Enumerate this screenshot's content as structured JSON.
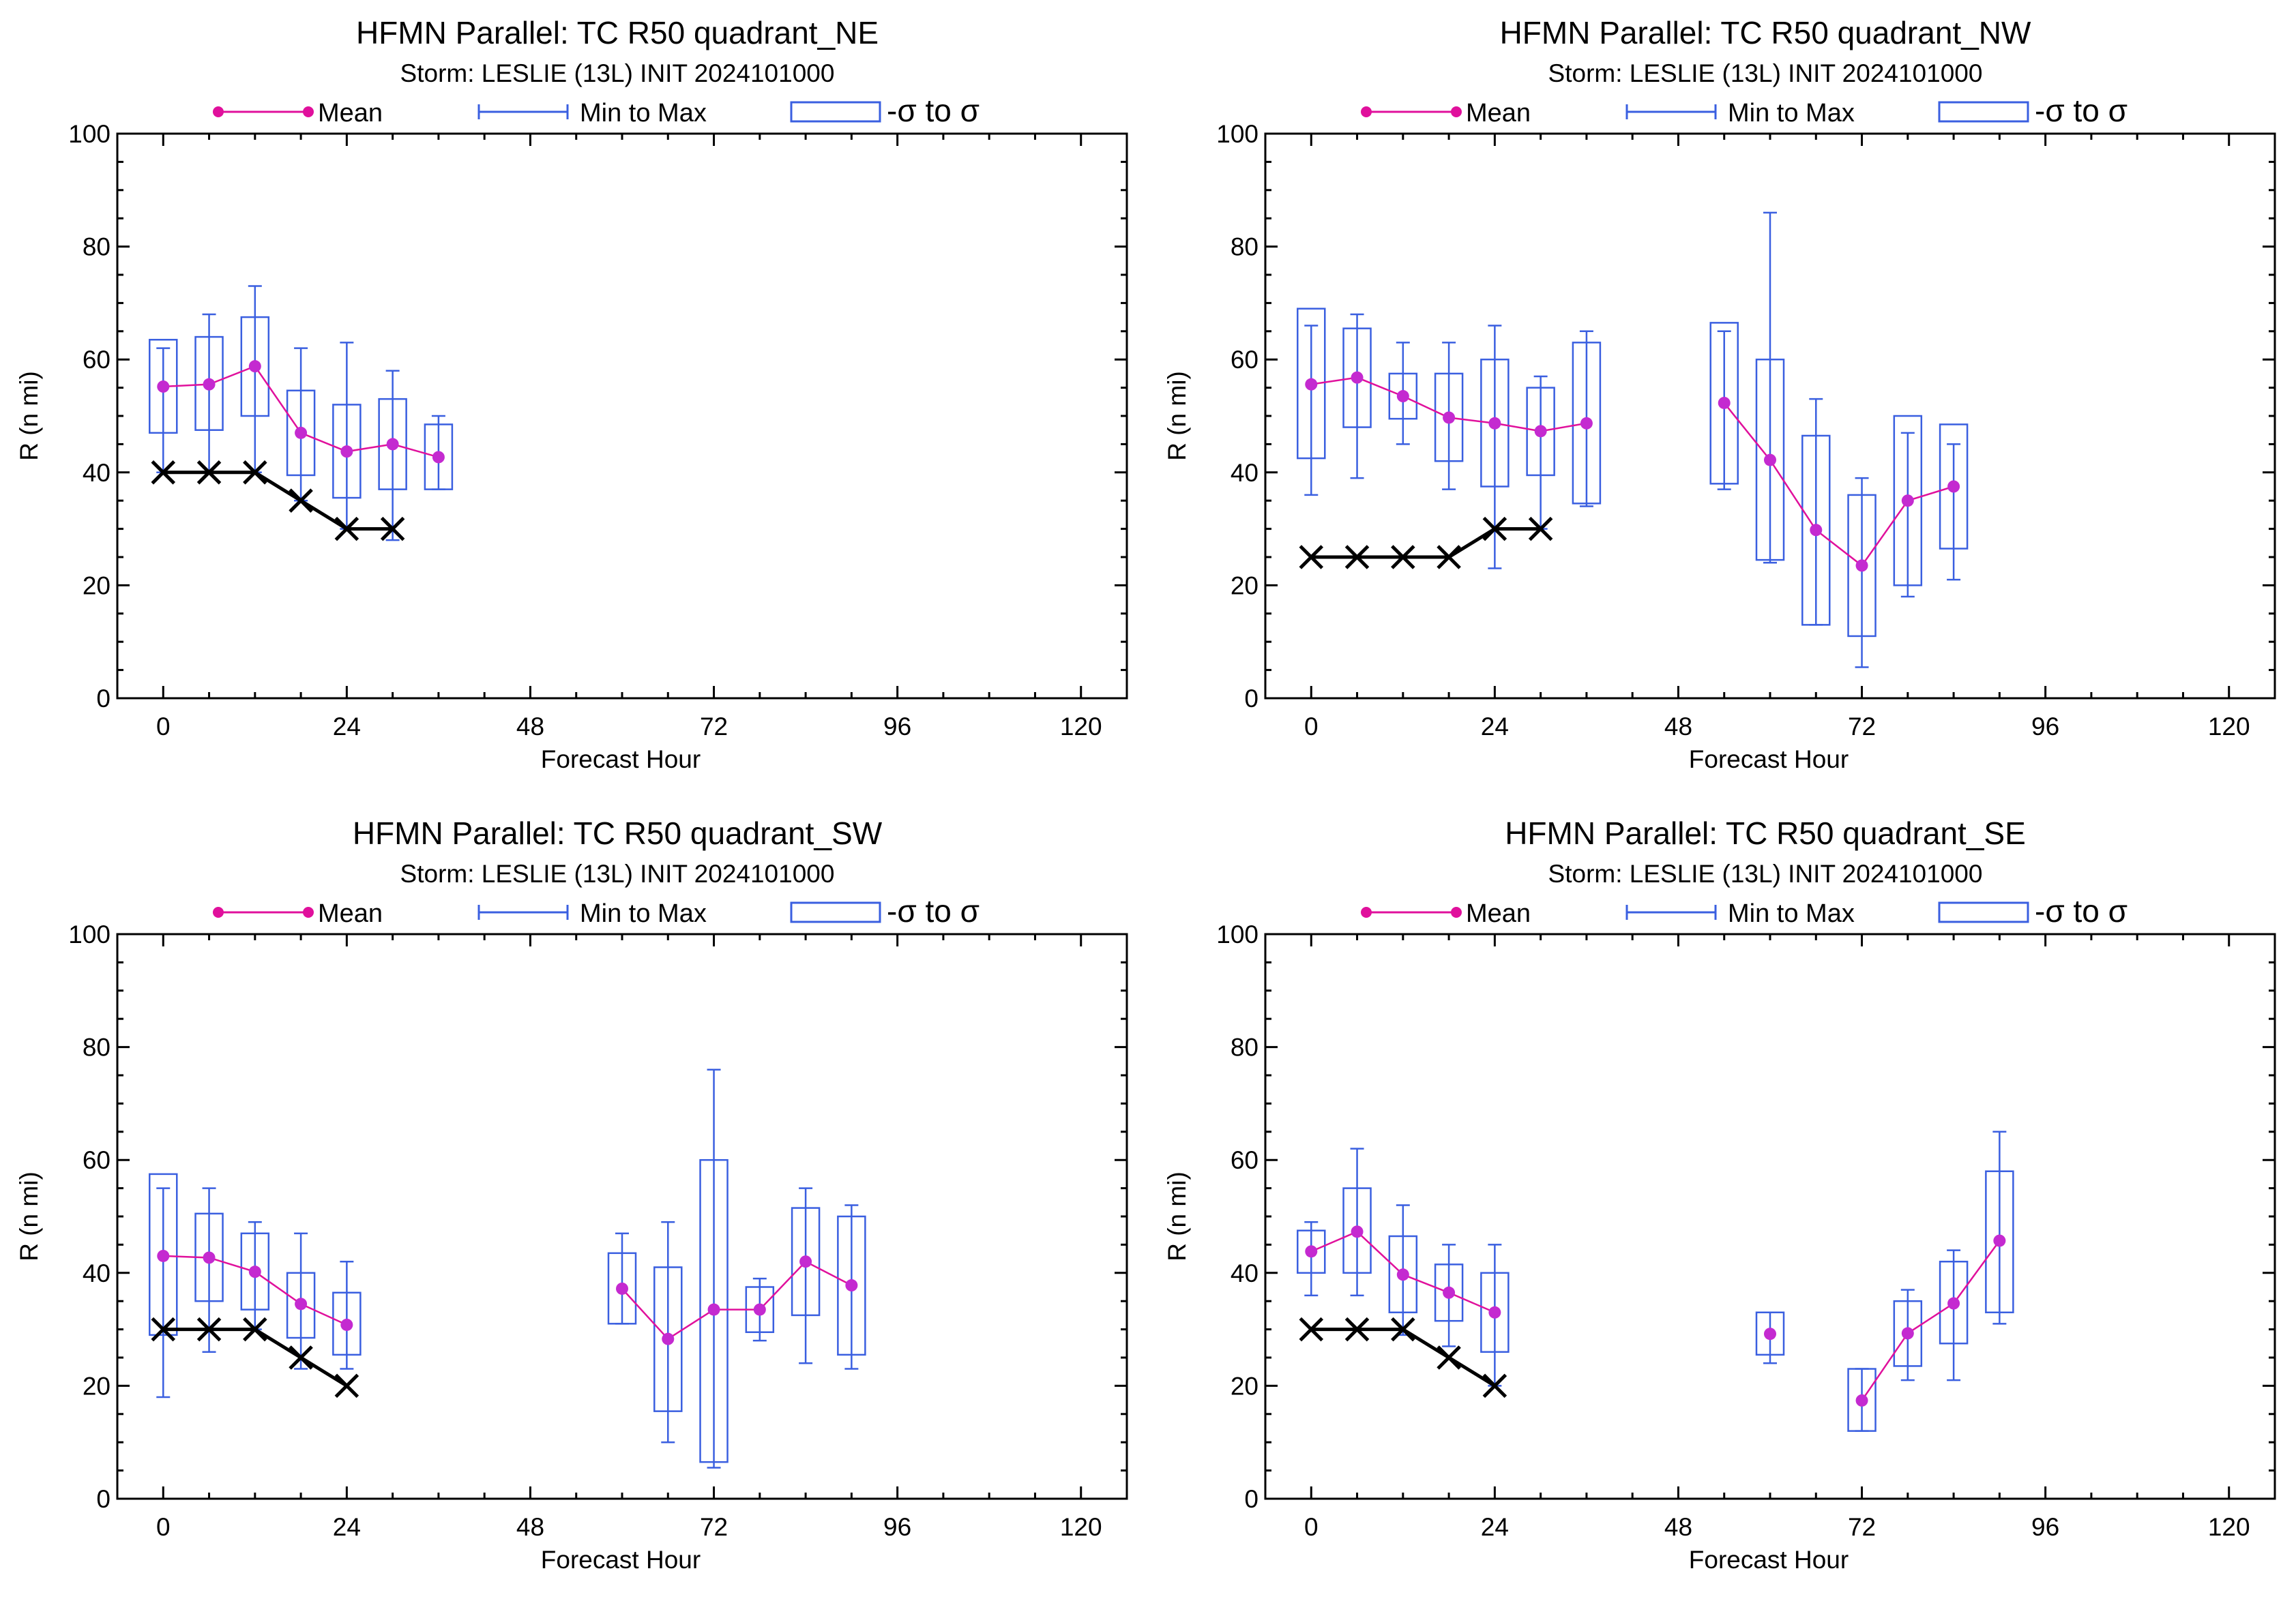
{
  "colors": {
    "mean": "#e0109c",
    "mean_marker": "#c42ad0",
    "range": "#3a5fe0",
    "observed": "#000000"
  },
  "legend": {
    "mean": "Mean",
    "range": "Min to Max",
    "sigma": "-σ to σ"
  },
  "chart_data": [
    {
      "type": "box",
      "title": "HFMN Parallel: TC  R50 quadrant_NE",
      "subtitle": "Storm: LESLIE (13L) INIT 2024101000",
      "xlabel": "Forecast Hour",
      "ylabel": "R (n mi)",
      "xlim": [
        -6,
        126
      ],
      "ylim": [
        0,
        100
      ],
      "xticks": [
        0,
        24,
        48,
        72,
        96,
        120
      ],
      "yticks": [
        0,
        20,
        40,
        60,
        80,
        100
      ],
      "series": [
        {
          "x": 0,
          "min": 40,
          "max": 62,
          "sigma_low": 47,
          "sigma_high": 63.5,
          "mean": 55.2
        },
        {
          "x": 6,
          "min": 40,
          "max": 68,
          "sigma_low": 47.5,
          "sigma_high": 64,
          "mean": 55.6
        },
        {
          "x": 12,
          "min": 40,
          "max": 73,
          "sigma_low": 50,
          "sigma_high": 67.5,
          "mean": 58.8
        },
        {
          "x": 18,
          "min": 35,
          "max": 62,
          "sigma_low": 39.5,
          "sigma_high": 54.5,
          "mean": 47
        },
        {
          "x": 24,
          "min": 30,
          "max": 63,
          "sigma_low": 35.5,
          "sigma_high": 52,
          "mean": 43.7
        },
        {
          "x": 30,
          "min": 28,
          "max": 58,
          "sigma_low": 37,
          "sigma_high": 53,
          "mean": 45
        },
        {
          "x": 36,
          "min": 37,
          "max": 50,
          "sigma_low": 37,
          "sigma_high": 48.5,
          "mean": 42.7
        }
      ],
      "observed": {
        "x": [
          0,
          6,
          12,
          18,
          24,
          30
        ],
        "y": [
          40,
          40,
          40,
          35,
          30,
          30
        ]
      }
    },
    {
      "type": "box",
      "title": "HFMN Parallel: TC  R50 quadrant_NW",
      "subtitle": "Storm: LESLIE (13L) INIT 2024101000",
      "xlabel": "Forecast Hour",
      "ylabel": "R (n mi)",
      "xlim": [
        -6,
        126
      ],
      "ylim": [
        0,
        100
      ],
      "xticks": [
        0,
        24,
        48,
        72,
        96,
        120
      ],
      "yticks": [
        0,
        20,
        40,
        60,
        80,
        100
      ],
      "series": [
        {
          "x": 0,
          "min": 36,
          "max": 66,
          "sigma_low": 42.5,
          "sigma_high": 69,
          "mean": 55.6
        },
        {
          "x": 6,
          "min": 39,
          "max": 68,
          "sigma_low": 48,
          "sigma_high": 65.5,
          "mean": 56.8
        },
        {
          "x": 12,
          "min": 45,
          "max": 63,
          "sigma_low": 49.5,
          "sigma_high": 57.5,
          "mean": 53.5
        },
        {
          "x": 18,
          "min": 37,
          "max": 63,
          "sigma_low": 42,
          "sigma_high": 57.5,
          "mean": 49.7
        },
        {
          "x": 24,
          "min": 23,
          "max": 66,
          "sigma_low": 37.5,
          "sigma_high": 60,
          "mean": 48.7
        },
        {
          "x": 30,
          "min": 30,
          "max": 57,
          "sigma_low": 39.5,
          "sigma_high": 55,
          "mean": 47.3
        },
        {
          "x": 36,
          "min": 34,
          "max": 65,
          "sigma_low": 34.5,
          "sigma_high": 63,
          "mean": 48.7
        },
        {
          "x": 54,
          "min": 37,
          "max": 65,
          "sigma_low": 38,
          "sigma_high": 66.5,
          "mean": 52.3
        },
        {
          "x": 60,
          "min": 24,
          "max": 86,
          "sigma_low": 24.5,
          "sigma_high": 60,
          "mean": 42.2
        },
        {
          "x": 66,
          "min": 13,
          "max": 53,
          "sigma_low": 13,
          "sigma_high": 46.5,
          "mean": 29.8
        },
        {
          "x": 72,
          "min": 5.5,
          "max": 39,
          "sigma_low": 11,
          "sigma_high": 36,
          "mean": 23.5
        },
        {
          "x": 78,
          "min": 18,
          "max": 47,
          "sigma_low": 20,
          "sigma_high": 50,
          "mean": 35
        },
        {
          "x": 84,
          "min": 21,
          "max": 45,
          "sigma_low": 26.5,
          "sigma_high": 48.5,
          "mean": 37.5
        }
      ],
      "observed": {
        "x": [
          0,
          6,
          12,
          18,
          24,
          30
        ],
        "y": [
          25,
          25,
          25,
          25,
          30,
          30
        ]
      }
    },
    {
      "type": "box",
      "title": "HFMN Parallel: TC  R50 quadrant_SW",
      "subtitle": "Storm: LESLIE (13L) INIT 2024101000",
      "xlabel": "Forecast Hour",
      "ylabel": "R (n mi)",
      "xlim": [
        -6,
        126
      ],
      "ylim": [
        0,
        100
      ],
      "xticks": [
        0,
        24,
        48,
        72,
        96,
        120
      ],
      "yticks": [
        0,
        20,
        40,
        60,
        80,
        100
      ],
      "series": [
        {
          "x": 0,
          "min": 18,
          "max": 55,
          "sigma_low": 29,
          "sigma_high": 57.5,
          "mean": 43
        },
        {
          "x": 6,
          "min": 26,
          "max": 55,
          "sigma_low": 35,
          "sigma_high": 50.5,
          "mean": 42.7
        },
        {
          "x": 12,
          "min": 30,
          "max": 49,
          "sigma_low": 33.5,
          "sigma_high": 47,
          "mean": 40.2
        },
        {
          "x": 18,
          "min": 23,
          "max": 47,
          "sigma_low": 28.5,
          "sigma_high": 40,
          "mean": 34.5
        },
        {
          "x": 24,
          "min": 23,
          "max": 42,
          "sigma_low": 25.5,
          "sigma_high": 36.5,
          "mean": 30.8
        },
        {
          "x": 60,
          "min": 31,
          "max": 47,
          "sigma_low": 31,
          "sigma_high": 43.5,
          "mean": 37.2
        },
        {
          "x": 66,
          "min": 10,
          "max": 49,
          "sigma_low": 15.5,
          "sigma_high": 41,
          "mean": 28.3
        },
        {
          "x": 72,
          "min": 5.5,
          "max": 76,
          "sigma_low": 6.5,
          "sigma_high": 60,
          "mean": 33.5
        },
        {
          "x": 78,
          "min": 28,
          "max": 39,
          "sigma_low": 29.5,
          "sigma_high": 37.5,
          "mean": 33.5
        },
        {
          "x": 84,
          "min": 24,
          "max": 55,
          "sigma_low": 32.5,
          "sigma_high": 51.5,
          "mean": 42
        },
        {
          "x": 90,
          "min": 23,
          "max": 52,
          "sigma_low": 25.5,
          "sigma_high": 50,
          "mean": 37.8
        }
      ],
      "observed": {
        "x": [
          0,
          6,
          12,
          18,
          24
        ],
        "y": [
          30,
          30,
          30,
          25,
          20
        ]
      }
    },
    {
      "type": "box",
      "title": "HFMN Parallel: TC  R50 quadrant_SE",
      "subtitle": "Storm: LESLIE (13L) INIT 2024101000",
      "xlabel": "Forecast Hour",
      "ylabel": "R (n mi)",
      "xlim": [
        -6,
        126
      ],
      "ylim": [
        0,
        100
      ],
      "xticks": [
        0,
        24,
        48,
        72,
        96,
        120
      ],
      "yticks": [
        0,
        20,
        40,
        60,
        80,
        100
      ],
      "series": [
        {
          "x": 0,
          "min": 36,
          "max": 49,
          "sigma_low": 40,
          "sigma_high": 47.5,
          "mean": 43.8
        },
        {
          "x": 6,
          "min": 36,
          "max": 62,
          "sigma_low": 40,
          "sigma_high": 55,
          "mean": 47.3
        },
        {
          "x": 12,
          "min": 29,
          "max": 52,
          "sigma_low": 33,
          "sigma_high": 46.5,
          "mean": 39.7
        },
        {
          "x": 18,
          "min": 27,
          "max": 45,
          "sigma_low": 31.5,
          "sigma_high": 41.5,
          "mean": 36.5
        },
        {
          "x": 24,
          "min": 20,
          "max": 45,
          "sigma_low": 26,
          "sigma_high": 40,
          "mean": 33
        },
        {
          "x": 60,
          "min": 24,
          "max": 33,
          "sigma_low": 25.5,
          "sigma_high": 33,
          "mean": 29.2
        },
        {
          "x": 72,
          "min": 12,
          "max": 23,
          "sigma_low": 12,
          "sigma_high": 23,
          "mean": 17.4
        },
        {
          "x": 78,
          "min": 21,
          "max": 37,
          "sigma_low": 23.5,
          "sigma_high": 35,
          "mean": 29.3
        },
        {
          "x": 84,
          "min": 21,
          "max": 44,
          "sigma_low": 27.5,
          "sigma_high": 42,
          "mean": 34.6
        },
        {
          "x": 90,
          "min": 31,
          "max": 65,
          "sigma_low": 33,
          "sigma_high": 58,
          "mean": 45.7
        }
      ],
      "observed": {
        "x": [
          0,
          6,
          12,
          18,
          24
        ],
        "y": [
          30,
          30,
          30,
          25,
          20
        ]
      }
    }
  ]
}
